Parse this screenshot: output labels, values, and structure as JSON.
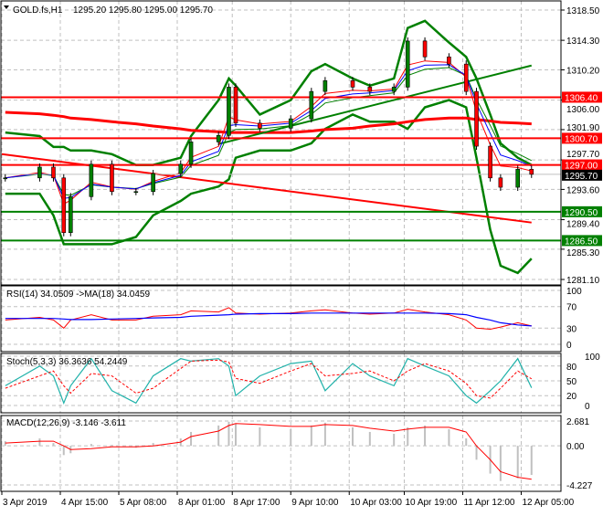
{
  "header": {
    "symbol": "GOLD.fs,H1",
    "ohlc": "1295.20 1295.80 1295.00 1295.70"
  },
  "colors": {
    "up": "#008000",
    "down": "#ff0000",
    "level_red": "#ff0000",
    "level_green": "#008000",
    "bollinger": "#008000",
    "ma_fast": "#0000ff",
    "ma_mid": "#ff0000",
    "ma_slow": "#008000",
    "rsi": "#ff0000",
    "rsi_ma": "#0000ff",
    "stoch_main": "#20b2aa",
    "stoch_signal": "#ff0000",
    "macd_hist": "#c0c0c0",
    "macd_signal": "#ff0000"
  },
  "chart_data": {
    "type": "candlestick",
    "price_ticks": [
      "1318.50",
      "1314.30",
      "1310.20",
      "1306.00",
      "1301.90",
      "1297.70",
      "1293.60",
      "1289.40",
      "1285.30",
      "1281.10"
    ],
    "ylim": [
      1281.1,
      1318.5
    ],
    "time_ticks": [
      {
        "label": "3 Apr 2019",
        "t": "3 22"
      },
      {
        "label": "4 Apr 15:00",
        "t": "4 15"
      },
      {
        "label": "5 Apr 08:00",
        "t": "5 8"
      },
      {
        "label": "8 Apr 01:00",
        "t": "8 1"
      },
      {
        "label": "8 Apr 17:00",
        "t": "8 17"
      },
      {
        "label": "9 Apr 10:00",
        "t": "9 10"
      },
      {
        "label": "10 Apr 03:00",
        "t": "10 3"
      },
      {
        "label": "10 Apr 19:00",
        "t": "10 19"
      },
      {
        "label": "11 Apr 12:00",
        "t": "11 12"
      },
      {
        "label": "12 Apr 05:00",
        "t": "12 5"
      }
    ],
    "times": [
      "3 23",
      "4 9",
      "4 13",
      "4 16",
      "4 18",
      "5 0",
      "5 6",
      "5 13",
      "5 18",
      "8 2",
      "8 5",
      "8 13",
      "8 16",
      "8 18",
      "9 1",
      "9 10",
      "9 16",
      "9 20",
      "10 4",
      "10 9",
      "10 16",
      "10 20",
      "11 1",
      "11 8",
      "11 13",
      "11 16",
      "11 20",
      "11 23",
      "12 4",
      "12 8"
    ],
    "close": [
      1295.2,
      1296.7,
      1295.2,
      1287.6,
      1292.6,
      1297.1,
      1293.3,
      1293.3,
      1295.8,
      1297.1,
      1300.2,
      1301.1,
      1307.8,
      1302.8,
      1302.1,
      1303.4,
      1307.2,
      1308.7,
      1307.8,
      1307.2,
      1307.8,
      1314.2,
      1312.0,
      1311.0,
      1307.2,
      1299.6,
      1295.2,
      1293.9,
      1296.4,
      1295.7
    ],
    "bollinger_upper": [
      1301.5,
      1301,
      1299.5,
      1299.5,
      1299,
      1299,
      1298.5,
      1297,
      1297,
      1298,
      1301,
      1306,
      1309,
      1308,
      1304,
      1306,
      1310,
      1311,
      1309,
      1308,
      1309,
      1316,
      1317,
      1314,
      1312,
      1309,
      1304,
      1300,
      1298,
      1297
    ],
    "bollinger_lower": [
      1293,
      1293,
      1290,
      1286,
      1286,
      1286,
      1286,
      1287,
      1290,
      1292,
      1293,
      1294,
      1295,
      1298,
      1299,
      1299,
      1300,
      1302,
      1304,
      1303,
      1303,
      1302,
      1305,
      1306,
      1305,
      1298,
      1288,
      1283,
      1282,
      1284
    ],
    "levels": [
      {
        "price": 1306.4,
        "label": "1306.40",
        "color": "red"
      },
      {
        "price": 1300.7,
        "label": "1300.70",
        "color": "red"
      },
      {
        "price": 1297.0,
        "label": "1297.00",
        "color": "red"
      },
      {
        "price": 1290.5,
        "label": "1290.50",
        "color": "green"
      },
      {
        "price": 1286.5,
        "label": "1286.50",
        "color": "green"
      }
    ],
    "current_price": "1295.70",
    "trendlines": [
      {
        "color": "red",
        "from": {
          "t": "3 22",
          "p": 1298.5
        },
        "to": {
          "t": "12 8",
          "p": 1289.0
        }
      },
      {
        "color": "green",
        "from": {
          "t": "8 13",
          "p": 1299.9
        },
        "to": {
          "t": "12 8",
          "p": 1310.8
        }
      }
    ],
    "ma_slow_red": [
      1304.3,
      1304.1,
      1303.9,
      1303.7,
      1303.5,
      1303.3,
      1303.0,
      1302.7,
      1302.4,
      1302.0,
      1301.8,
      1301.6,
      1301.5,
      1301.5,
      1301.5,
      1301.5,
      1301.7,
      1301.9,
      1302.1,
      1302.4,
      1302.7,
      1303.0,
      1303.3,
      1303.5,
      1303.5,
      1303.3,
      1303.1,
      1302.9,
      1302.8,
      1302.7
    ],
    "rsi": {
      "label": "RSI(14) 34.0509  ->MA(18) 34.0459",
      "ticks": [
        "100",
        "70",
        "30",
        "0"
      ],
      "ylim": [
        0,
        100
      ],
      "values": [
        45,
        50,
        45,
        30,
        45,
        55,
        45,
        45,
        52,
        55,
        62,
        60,
        68,
        58,
        56,
        58,
        62,
        64,
        58,
        56,
        58,
        65,
        60,
        55,
        45,
        30,
        28,
        32,
        40,
        34
      ],
      "ma": [
        48,
        48,
        48,
        47,
        46,
        46,
        47,
        48,
        49,
        50,
        52,
        54,
        55,
        56,
        57,
        57,
        58,
        58,
        58,
        58,
        58,
        58,
        58,
        57,
        55,
        50,
        45,
        40,
        36,
        34
      ]
    },
    "stoch": {
      "label": "Stoch(5,3,3) 36.3636 54.2449",
      "ticks": [
        "100",
        "80",
        "50",
        "20",
        "0"
      ],
      "ylim": [
        0,
        100
      ],
      "main": [
        40,
        80,
        60,
        5,
        40,
        95,
        30,
        5,
        60,
        95,
        90,
        95,
        80,
        20,
        60,
        85,
        90,
        30,
        85,
        60,
        40,
        95,
        80,
        60,
        20,
        5,
        30,
        50,
        95,
        36
      ],
      "signal": [
        35,
        60,
        70,
        40,
        25,
        65,
        60,
        25,
        35,
        75,
        90,
        92,
        88,
        55,
        45,
        70,
        85,
        60,
        65,
        70,
        50,
        70,
        85,
        70,
        45,
        20,
        15,
        35,
        70,
        54
      ]
    },
    "macd": {
      "label": "MACD(12,26,9) -3.146 -3.611",
      "ticks": [
        "2.681",
        "0.00",
        "-4.227"
      ],
      "ylim": [
        -4.227,
        2.681
      ],
      "hist": [
        0.5,
        0.8,
        0.3,
        -1.0,
        -0.8,
        0.2,
        0.1,
        -0.2,
        0.3,
        0.8,
        1.5,
        2.2,
        2.6,
        2.4,
        2.0,
        1.8,
        2.2,
        2.5,
        2.0,
        1.5,
        1.3,
        2.0,
        2.2,
        1.8,
        0.8,
        -1.5,
        -3.0,
        -3.8,
        -3.5,
        -3.146
      ],
      "signal": [
        0.3,
        0.5,
        0.5,
        0,
        -0.4,
        -0.3,
        -0.1,
        -0.1,
        0,
        0.4,
        1.0,
        1.6,
        2.2,
        2.4,
        2.3,
        2.1,
        2.1,
        2.3,
        2.2,
        1.9,
        1.6,
        1.8,
        2.0,
        2.0,
        1.5,
        0,
        -1.5,
        -2.8,
        -3.4,
        -3.611
      ]
    }
  }
}
